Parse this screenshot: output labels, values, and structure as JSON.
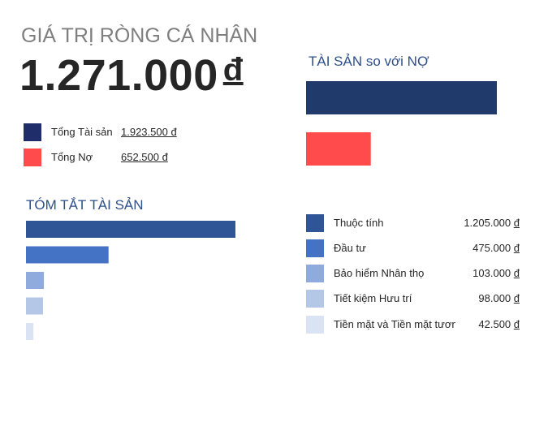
{
  "header": {
    "title": "GIÁ TRỊ RÒNG CÁ NHÂN",
    "net_worth": "1.271.000",
    "currency": "đ"
  },
  "totals": [
    {
      "label": "Tổng Tài sản",
      "value": "1.923.500 đ",
      "color": "#1f2d6b"
    },
    {
      "label": "Tổng Nợ",
      "value": "652.500 đ",
      "color": "#ff4b4b"
    }
  ],
  "chart_data": [
    {
      "type": "bar",
      "orientation": "horizontal",
      "title": "TÀI SẢN so với NỢ",
      "categories": [
        "Tổng Tài sản",
        "Tổng Nợ"
      ],
      "values": [
        1923500,
        652500
      ],
      "colors": [
        "#1f3a6b",
        "#ff4b4b"
      ],
      "xlim": [
        0,
        1923500
      ],
      "grid": false,
      "legend": "none"
    },
    {
      "type": "bar",
      "orientation": "horizontal",
      "title": "TÓM TẮT TÀI SẢN",
      "categories": [
        "Thuộc tính",
        "Đầu tư",
        "Bảo hiểm Nhân thọ",
        "Tiết kiệm Hưu trí",
        "Tiền mặt và Tiền mặt tương đương"
      ],
      "values": [
        1205000,
        475000,
        103000,
        98000,
        42500
      ],
      "value_labels": [
        "1.205.000 đ",
        "475.000 đ",
        "103.000 đ",
        "98.000 đ",
        "42.500 đ"
      ],
      "colors": [
        "#2f5597",
        "#4472c4",
        "#8faadc",
        "#b4c7e7",
        "#dae3f3"
      ],
      "xlim": [
        0,
        1205000
      ],
      "grid": false,
      "legend": "right"
    }
  ]
}
